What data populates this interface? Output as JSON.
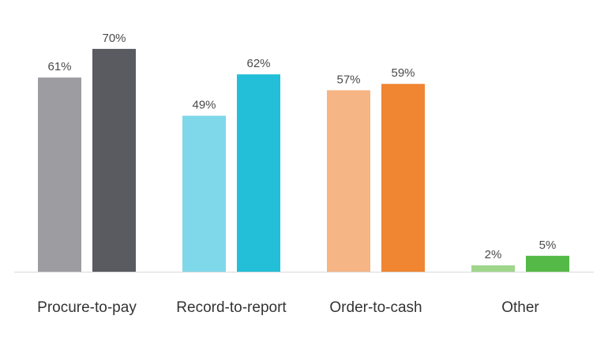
{
  "chart_data": {
    "type": "bar",
    "categories": [
      "Procure-to-pay",
      "Record-to-report",
      "Order-to-cash",
      "Other"
    ],
    "series": [
      {
        "values": [
          61,
          49,
          57,
          2
        ],
        "labels": [
          "61%",
          "49%",
          "57%",
          "2%"
        ],
        "colors": [
          "#9d9da1",
          "#7fd8ea",
          "#f5b584",
          "#9fd68c"
        ]
      },
      {
        "values": [
          70,
          62,
          59,
          5
        ],
        "labels": [
          "70%",
          "62%",
          "59%",
          "5%"
        ],
        "colors": [
          "#5a5b60",
          "#23bed7",
          "#f08532",
          "#55b948"
        ]
      }
    ],
    "ylim": [
      0,
      100
    ],
    "grid": false,
    "legend": "none",
    "baseline_color": "#d9d9d9"
  }
}
